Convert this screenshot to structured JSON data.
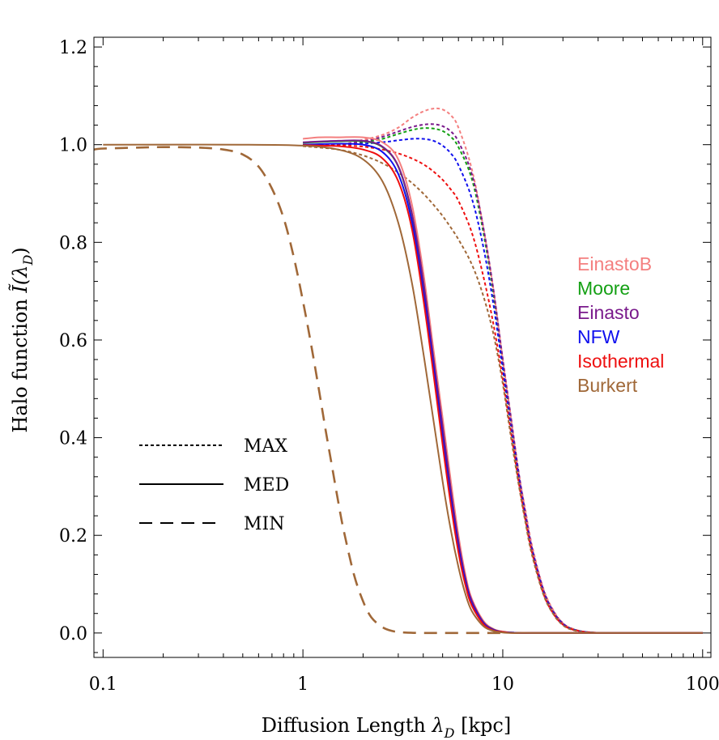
{
  "chart_data": {
    "type": "line",
    "title": "",
    "xlabel_main": "Diffusion Length ",
    "xlabel_symbol": "λ",
    "xlabel_sub": "D",
    "xlabel_unit": " [kpc]",
    "ylabel_main": "Halo function ",
    "ylabel_symbol": "Ĩ",
    "ylabel_arg_open": "(λ",
    "ylabel_sub": "D",
    "ylabel_arg_close": ")",
    "xscale": "log",
    "xlim": [
      0.09,
      110
    ],
    "ylim": [
      -0.05,
      1.22
    ],
    "x_ticks": [
      {
        "value": 0.1,
        "label": "0.1"
      },
      {
        "value": 1,
        "label": "1"
      },
      {
        "value": 10,
        "label": "10"
      },
      {
        "value": 100,
        "label": "100"
      }
    ],
    "y_ticks": [
      {
        "value": 0.0,
        "label": "0.0"
      },
      {
        "value": 0.2,
        "label": "0.2"
      },
      {
        "value": 0.4,
        "label": "0.4"
      },
      {
        "value": 0.6,
        "label": "0.6"
      },
      {
        "value": 0.8,
        "label": "0.8"
      },
      {
        "value": 1.0,
        "label": "1.0"
      },
      {
        "value": 1.2,
        "label": "1.2"
      }
    ],
    "halo_legend": [
      {
        "name": "EinastoB",
        "color": "#f47f7f"
      },
      {
        "name": "Moore",
        "color": "#14a014"
      },
      {
        "name": "Einasto",
        "color": "#7a1a8c"
      },
      {
        "name": "NFW",
        "color": "#1010ee"
      },
      {
        "name": "Isothermal",
        "color": "#ee1010"
      },
      {
        "name": "Burkert",
        "color": "#a06838"
      }
    ],
    "style_legend": [
      {
        "label": "MAX",
        "dash": "4,3"
      },
      {
        "label": "MED",
        "dash": ""
      },
      {
        "label": "MIN",
        "dash": "16,10"
      }
    ],
    "series": [
      {
        "name": "EinastoB MAX",
        "halo": "EinastoB",
        "model": "MAX",
        "color": "#f47f7f",
        "dash": "4,3",
        "x": [
          1.0,
          1.5,
          2.0,
          2.5,
          3.0,
          3.5,
          4.0,
          4.5,
          5.0,
          5.5,
          6.0,
          7.0,
          8.0,
          9.0,
          10,
          11,
          12,
          13,
          14,
          16,
          18,
          20,
          22,
          25,
          28,
          32,
          40,
          60,
          100
        ],
        "y": [
          1.0,
          1.0,
          1.01,
          1.02,
          1.035,
          1.055,
          1.068,
          1.074,
          1.072,
          1.06,
          1.035,
          0.95,
          0.83,
          0.7,
          0.56,
          0.44,
          0.33,
          0.25,
          0.18,
          0.09,
          0.045,
          0.02,
          0.01,
          0.003,
          0.001,
          0.0,
          0.0,
          0.0,
          0.0
        ]
      },
      {
        "name": "Moore MAX",
        "halo": "Moore",
        "model": "MAX",
        "color": "#14a014",
        "dash": "4,3",
        "x": [
          1.0,
          1.5,
          2.0,
          2.5,
          3.0,
          3.5,
          4.0,
          4.5,
          5.0,
          5.5,
          6.0,
          7.0,
          8.0,
          9.0,
          10,
          11,
          12,
          13,
          14,
          16,
          18,
          20,
          22,
          25,
          28,
          32,
          40,
          60,
          100
        ],
        "y": [
          1.0,
          1.0,
          1.005,
          1.012,
          1.022,
          1.03,
          1.034,
          1.033,
          1.028,
          1.016,
          0.995,
          0.93,
          0.82,
          0.69,
          0.55,
          0.43,
          0.32,
          0.24,
          0.17,
          0.085,
          0.042,
          0.019,
          0.009,
          0.003,
          0.001,
          0.0,
          0.0,
          0.0,
          0.0
        ]
      },
      {
        "name": "Einasto MAX",
        "halo": "Einasto",
        "model": "MAX",
        "color": "#7a1a8c",
        "dash": "4,3",
        "x": [
          1.0,
          1.5,
          2.0,
          2.5,
          3.0,
          3.5,
          4.0,
          4.5,
          5.0,
          5.5,
          6.0,
          7.0,
          8.0,
          9.0,
          10,
          11,
          12,
          13,
          14,
          16,
          18,
          20,
          22,
          25,
          28,
          32,
          40,
          60,
          100
        ],
        "y": [
          1.0,
          1.0,
          1.007,
          1.016,
          1.027,
          1.036,
          1.041,
          1.042,
          1.038,
          1.027,
          1.006,
          0.94,
          0.83,
          0.7,
          0.56,
          0.44,
          0.33,
          0.245,
          0.175,
          0.088,
          0.043,
          0.02,
          0.009,
          0.003,
          0.001,
          0.0,
          0.0,
          0.0,
          0.0
        ]
      },
      {
        "name": "NFW MAX",
        "halo": "NFW",
        "model": "MAX",
        "color": "#1010ee",
        "dash": "4,3",
        "x": [
          1.0,
          1.5,
          2.0,
          2.5,
          3.0,
          3.5,
          4.0,
          4.5,
          5.0,
          5.5,
          6.0,
          7.0,
          8.0,
          9.0,
          10,
          11,
          12,
          13,
          14,
          16,
          18,
          20,
          22,
          25,
          28,
          32,
          40,
          60,
          100
        ],
        "y": [
          1.0,
          1.0,
          1.002,
          1.005,
          1.009,
          1.012,
          1.012,
          1.008,
          0.998,
          0.982,
          0.958,
          0.89,
          0.79,
          0.67,
          0.54,
          0.42,
          0.32,
          0.235,
          0.17,
          0.083,
          0.04,
          0.018,
          0.008,
          0.003,
          0.001,
          0.0,
          0.0,
          0.0,
          0.0
        ]
      },
      {
        "name": "Isothermal MAX",
        "halo": "Isothermal",
        "model": "MAX",
        "color": "#ee1010",
        "dash": "4,3",
        "x": [
          1.0,
          1.5,
          2.0,
          2.5,
          3.0,
          3.5,
          4.0,
          4.5,
          5.0,
          5.5,
          6.0,
          7.0,
          8.0,
          9.0,
          10,
          11,
          12,
          13,
          14,
          16,
          18,
          20,
          22,
          25,
          28,
          32,
          40,
          60,
          100
        ],
        "y": [
          1.0,
          0.999,
          0.996,
          0.99,
          0.982,
          0.972,
          0.96,
          0.945,
          0.928,
          0.908,
          0.885,
          0.82,
          0.73,
          0.63,
          0.52,
          0.41,
          0.31,
          0.23,
          0.165,
          0.08,
          0.038,
          0.017,
          0.008,
          0.003,
          0.001,
          0.0,
          0.0,
          0.0,
          0.0
        ]
      },
      {
        "name": "Burkert MAX",
        "halo": "Burkert",
        "model": "MAX",
        "color": "#a06838",
        "dash": "4,3",
        "x": [
          1.0,
          1.5,
          2.0,
          2.5,
          3.0,
          3.5,
          4.0,
          4.5,
          5.0,
          5.5,
          6.0,
          7.0,
          8.0,
          9.0,
          10,
          11,
          12,
          13,
          14,
          16,
          18,
          20,
          22,
          25,
          28,
          32,
          40,
          60,
          100
        ],
        "y": [
          0.997,
          0.99,
          0.978,
          0.962,
          0.943,
          0.922,
          0.9,
          0.877,
          0.854,
          0.83,
          0.806,
          0.755,
          0.69,
          0.61,
          0.51,
          0.4,
          0.305,
          0.225,
          0.16,
          0.078,
          0.037,
          0.016,
          0.007,
          0.002,
          0.001,
          0.0,
          0.0,
          0.0,
          0.0
        ]
      },
      {
        "name": "EinastoB MED",
        "halo": "EinastoB",
        "model": "MED",
        "color": "#f47f7f",
        "dash": "",
        "x": [
          1.0,
          1.2,
          1.5,
          2.0,
          2.5,
          3.0,
          3.5,
          4.0,
          4.5,
          5.0,
          5.5,
          6.0,
          6.5,
          7.0,
          8.0,
          9.0,
          10,
          11,
          12,
          14,
          20,
          50,
          100
        ],
        "y": [
          1.012,
          1.015,
          1.015,
          1.015,
          1.005,
          0.97,
          0.88,
          0.74,
          0.58,
          0.44,
          0.31,
          0.2,
          0.12,
          0.07,
          0.025,
          0.008,
          0.003,
          0.001,
          0.0,
          0.0,
          0.0,
          0.0,
          0.0
        ]
      },
      {
        "name": "Moore MED",
        "halo": "Moore",
        "model": "MED",
        "color": "#14a014",
        "dash": "",
        "x": [
          1.0,
          1.5,
          2.0,
          2.5,
          3.0,
          3.5,
          4.0,
          4.5,
          5.0,
          5.5,
          6.0,
          6.5,
          7.0,
          8.0,
          9.0,
          10,
          11,
          12,
          14,
          20,
          50,
          100
        ],
        "y": [
          1.004,
          1.007,
          1.007,
          0.995,
          0.955,
          0.86,
          0.72,
          0.56,
          0.42,
          0.29,
          0.185,
          0.11,
          0.065,
          0.022,
          0.007,
          0.002,
          0.001,
          0.0,
          0.0,
          0.0,
          0.0,
          0.0
        ]
      },
      {
        "name": "Einasto MED",
        "halo": "Einasto",
        "model": "MED",
        "color": "#7a1a8c",
        "dash": "",
        "x": [
          1.0,
          1.5,
          2.0,
          2.5,
          3.0,
          3.5,
          4.0,
          4.5,
          5.0,
          5.5,
          6.0,
          6.5,
          7.0,
          8.0,
          9.0,
          10,
          11,
          12,
          14,
          20,
          50,
          100
        ],
        "y": [
          1.005,
          1.008,
          1.008,
          0.996,
          0.956,
          0.862,
          0.722,
          0.562,
          0.422,
          0.292,
          0.187,
          0.112,
          0.066,
          0.022,
          0.007,
          0.002,
          0.001,
          0.0,
          0.0,
          0.0,
          0.0,
          0.0
        ]
      },
      {
        "name": "NFW MED",
        "halo": "NFW",
        "model": "MED",
        "color": "#1010ee",
        "dash": "",
        "x": [
          1.0,
          1.5,
          2.0,
          2.5,
          3.0,
          3.5,
          4.0,
          4.5,
          5.0,
          5.5,
          6.0,
          6.5,
          7.0,
          8.0,
          9.0,
          10,
          11,
          12,
          14,
          20,
          50,
          100
        ],
        "y": [
          1.0,
          1.002,
          1.0,
          0.985,
          0.94,
          0.845,
          0.7,
          0.545,
          0.4,
          0.275,
          0.175,
          0.105,
          0.06,
          0.02,
          0.006,
          0.002,
          0.001,
          0.0,
          0.0,
          0.0,
          0.0,
          0.0
        ]
      },
      {
        "name": "Isothermal MED",
        "halo": "Isothermal",
        "model": "MED",
        "color": "#ee1010",
        "dash": "",
        "x": [
          1.0,
          1.5,
          2.0,
          2.5,
          3.0,
          3.5,
          4.0,
          4.5,
          5.0,
          5.5,
          6.0,
          6.5,
          7.0,
          8.0,
          9.0,
          10,
          11,
          12,
          14,
          20,
          50,
          100
        ],
        "y": [
          0.999,
          0.997,
          0.99,
          0.972,
          0.925,
          0.83,
          0.685,
          0.53,
          0.385,
          0.262,
          0.165,
          0.098,
          0.056,
          0.018,
          0.005,
          0.002,
          0.0,
          0.0,
          0.0,
          0.0,
          0.0,
          0.0
        ]
      },
      {
        "name": "Burkert MED",
        "halo": "Burkert",
        "model": "MED",
        "color": "#a06838",
        "dash": "",
        "x": [
          0.1,
          0.5,
          1.0,
          1.5,
          2.0,
          2.5,
          3.0,
          3.5,
          4.0,
          4.5,
          5.0,
          5.5,
          6.0,
          6.5,
          7.0,
          8.0,
          9.0,
          10,
          11,
          12,
          14,
          20,
          50,
          100
        ],
        "y": [
          1.0,
          1.0,
          0.998,
          0.99,
          0.97,
          0.925,
          0.84,
          0.72,
          0.575,
          0.435,
          0.31,
          0.21,
          0.135,
          0.08,
          0.045,
          0.014,
          0.004,
          0.001,
          0.0,
          0.0,
          0.0,
          0.0,
          0.0,
          0.0
        ]
      },
      {
        "name": "Burkert MIN",
        "halo": "Burkert",
        "model": "MIN",
        "color": "#a06838",
        "dash": "16,10",
        "x": [
          0.09,
          0.1,
          0.15,
          0.2,
          0.3,
          0.4,
          0.5,
          0.6,
          0.7,
          0.8,
          0.9,
          1.0,
          1.1,
          1.2,
          1.3,
          1.4,
          1.5,
          1.6,
          1.8,
          2.0,
          2.2,
          2.5,
          2.8,
          3.2,
          4.0,
          6.0,
          10
        ],
        "y": [
          0.99,
          0.992,
          0.994,
          0.995,
          0.994,
          0.99,
          0.98,
          0.955,
          0.91,
          0.85,
          0.77,
          0.68,
          0.59,
          0.5,
          0.415,
          0.34,
          0.27,
          0.21,
          0.12,
          0.065,
          0.032,
          0.012,
          0.004,
          0.001,
          0.0,
          0.0,
          0.0
        ]
      }
    ]
  }
}
